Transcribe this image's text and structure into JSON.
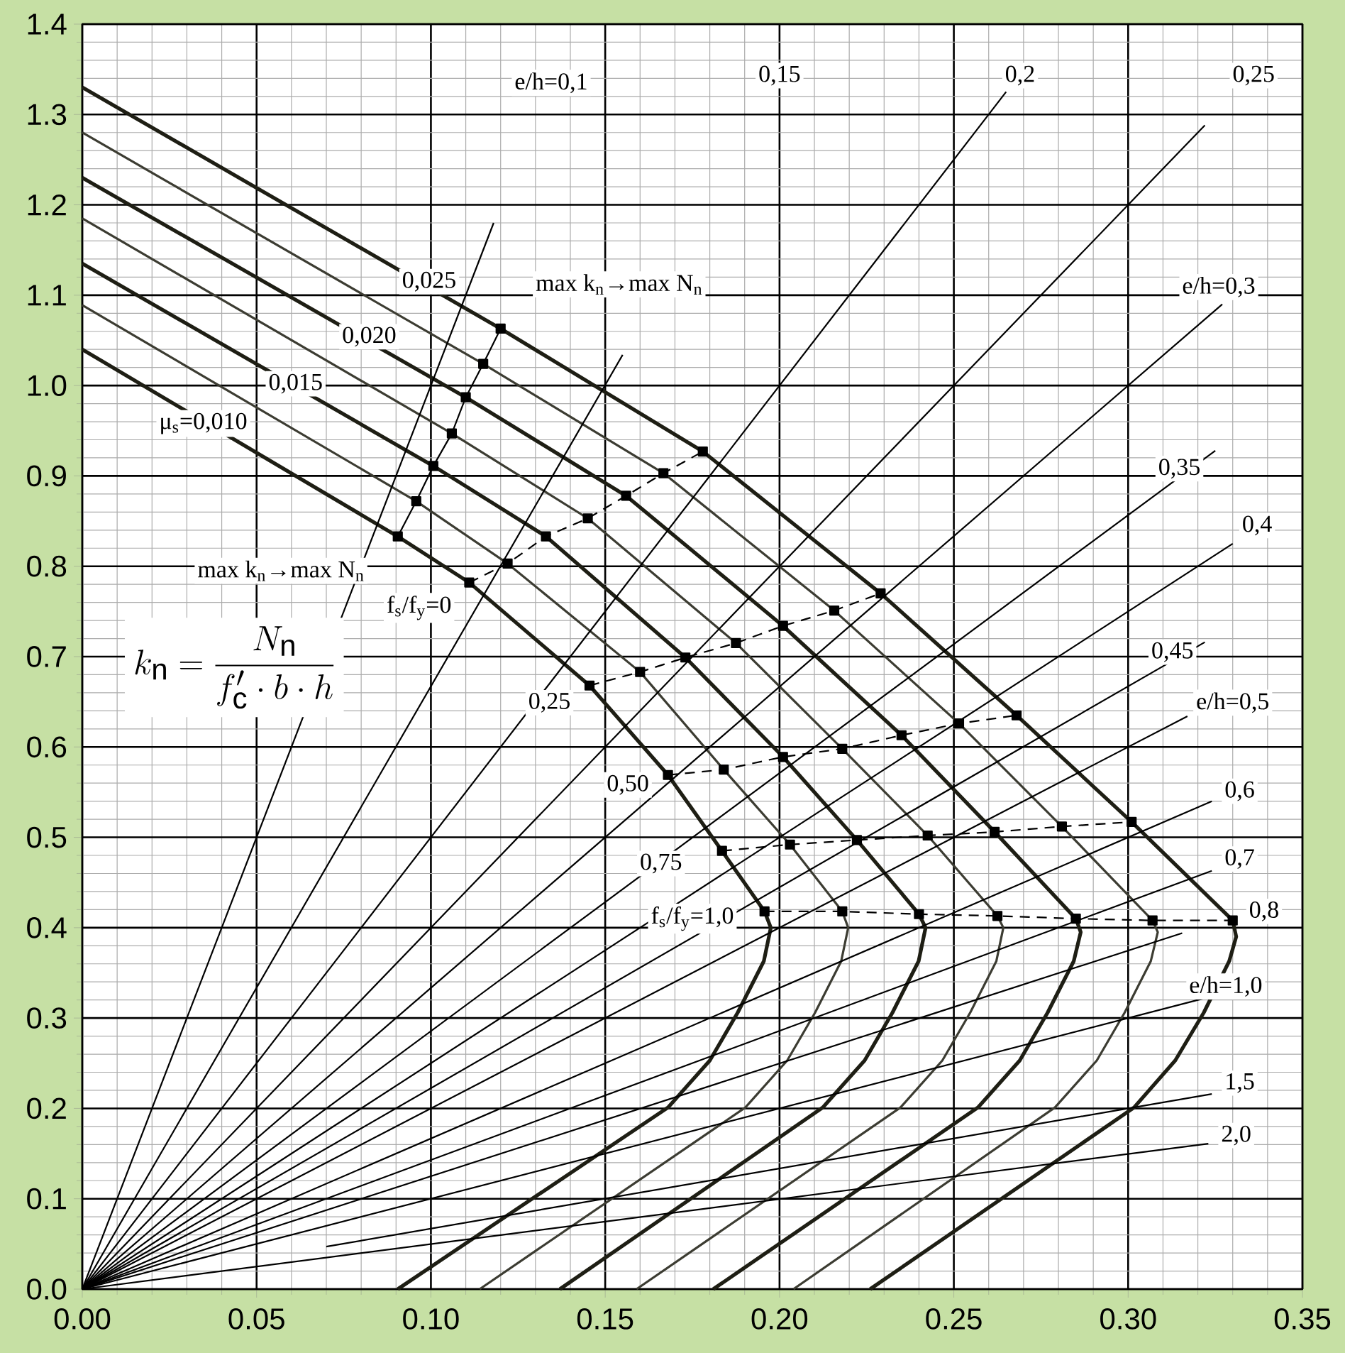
{
  "chart_data": {
    "type": "line",
    "xlim": [
      0,
      0.35
    ],
    "ylim": [
      0,
      1.4
    ],
    "xticks": [
      {
        "value": 0,
        "label": "0.00"
      },
      0.05,
      {
        "value": 0.1,
        "label": "0.10"
      },
      0.15,
      {
        "value": 0.2,
        "label": "0.20"
      },
      0.25,
      {
        "value": 0.3,
        "label": "0.30"
      },
      0.35
    ],
    "yticks": [
      {
        "value": 0,
        "label": "0.0"
      },
      0.1,
      0.2,
      0.3,
      0.4,
      0.5,
      0.6,
      0.7,
      0.8,
      0.9,
      {
        "value": 1,
        "label": "1.0"
      },
      1.1,
      1.2,
      1.3,
      1.4
    ],
    "grid": true,
    "series": [
      {
        "color": "#1e1e14",
        "x": [
          0,
          0.0905,
          0.111,
          0.1455,
          0.168,
          0.1835,
          0.1957,
          0.1975,
          0.1955,
          0.188,
          0.18,
          0.168,
          0.0905
        ],
        "values": [
          1.04,
          0.833,
          0.782,
          0.668,
          0.569,
          0.485,
          0.418,
          0.4,
          0.363,
          0.306,
          0.253,
          0.201,
          0
        ]
      },
      {
        "color": "#3c3c32",
        "x": [
          0,
          0.0958,
          0.122,
          0.16,
          0.184,
          0.203,
          0.218,
          0.2197,
          0.2177,
          0.2102,
          0.2022,
          0.1902,
          0.114
        ],
        "values": [
          1.089,
          0.872,
          0.803,
          0.683,
          0.575,
          0.492,
          0.418,
          0.4,
          0.363,
          0.306,
          0.253,
          0.201,
          0
        ]
      },
      {
        "color": "#1e1e14",
        "x": [
          0,
          0.1007,
          0.133,
          0.173,
          0.201,
          0.2222,
          0.24,
          0.2419,
          0.2399,
          0.2324,
          0.2244,
          0.2124,
          0.137
        ],
        "values": [
          1.135,
          0.911,
          0.833,
          0.699,
          0.589,
          0.497,
          0.415,
          0.4,
          0.363,
          0.306,
          0.253,
          0.201,
          0
        ]
      },
      {
        "color": "#3c3c32",
        "x": [
          0,
          0.106,
          0.145,
          0.1875,
          0.218,
          0.2425,
          0.2625,
          0.2642,
          0.2622,
          0.2547,
          0.2467,
          0.2347,
          0.159
        ],
        "values": [
          1.185,
          0.947,
          0.853,
          0.715,
          0.598,
          0.502,
          0.413,
          0.4,
          0.363,
          0.306,
          0.253,
          0.201,
          0
        ]
      },
      {
        "color": "#1e1e14",
        "x": [
          0,
          0.11,
          0.156,
          0.201,
          0.235,
          0.2617,
          0.285,
          0.2864,
          0.2844,
          0.2769,
          0.2689,
          0.2569,
          0.181
        ],
        "values": [
          1.23,
          0.987,
          0.878,
          0.734,
          0.613,
          0.506,
          0.41,
          0.395,
          0.363,
          0.306,
          0.253,
          0.201,
          0
        ]
      },
      {
        "color": "#3c3c32",
        "x": [
          0,
          0.115,
          0.1667,
          0.2157,
          0.2515,
          0.281,
          0.307,
          0.3085,
          0.3065,
          0.299,
          0.291,
          0.279,
          0.204
        ],
        "values": [
          1.28,
          1.024,
          0.903,
          0.751,
          0.626,
          0.512,
          0.408,
          0.395,
          0.363,
          0.306,
          0.253,
          0.201,
          0
        ]
      },
      {
        "color": "#1e1e14",
        "x": [
          0,
          0.12,
          0.178,
          0.229,
          0.268,
          0.301,
          0.33,
          0.331,
          0.329,
          0.3217,
          0.3135,
          0.3017,
          0.226
        ],
        "values": [
          1.33,
          1.063,
          0.927,
          0.77,
          0.635,
          0.517,
          0.408,
          0.39,
          0.363,
          0.306,
          0.253,
          0.201,
          0
        ]
      },
      {
        "color": "#000000",
        "x": [
          0,
          0.118
        ],
        "values": [
          0,
          1.18
        ]
      },
      {
        "color": "#000000",
        "x": [
          0,
          0.155
        ],
        "values": [
          0,
          1.034
        ]
      },
      {
        "color": "#000000",
        "x": [
          0,
          0.265
        ],
        "values": [
          0,
          1.325
        ]
      },
      {
        "color": "#000000",
        "x": [
          0,
          0.322
        ],
        "values": [
          0,
          1.288
        ]
      },
      {
        "color": "#000000",
        "x": [
          0,
          0.327
        ],
        "values": [
          0,
          1.09
        ]
      },
      {
        "color": "#000000",
        "x": [
          0,
          0.325
        ],
        "values": [
          0,
          0.928
        ]
      },
      {
        "color": "#000000",
        "x": [
          0,
          0.33
        ],
        "values": [
          0,
          0.825
        ]
      },
      {
        "color": "#000000",
        "x": [
          0,
          0.322
        ],
        "values": [
          0,
          0.716
        ]
      },
      {
        "color": "#000000",
        "x": [
          0,
          0.317
        ],
        "values": [
          0,
          0.634
        ]
      },
      {
        "color": "#000000",
        "x": [
          0,
          0.324
        ],
        "values": [
          0,
          0.54
        ]
      },
      {
        "color": "#000000",
        "x": [
          0,
          0.324
        ],
        "values": [
          0,
          0.463
        ]
      },
      {
        "color": "#000000",
        "x": [
          0,
          0.3155
        ],
        "values": [
          0,
          0.394
        ]
      },
      {
        "color": "#000000",
        "x": [
          0,
          0.322
        ],
        "values": [
          0,
          0.322
        ]
      },
      {
        "color": "#000000",
        "x": [
          0.07,
          0.324
        ],
        "values": [
          0.047,
          0.216
        ]
      },
      {
        "color": "#000000",
        "x": [
          0,
          0.323
        ],
        "values": [
          0,
          0.161
        ]
      },
      {
        "color": "#000000",
        "marker": "square",
        "x": [
          0.0905,
          0.0958,
          0.1007,
          0.106,
          0.11,
          0.115,
          0.12
        ],
        "values": [
          0.833,
          0.872,
          0.911,
          0.947,
          0.987,
          1.024,
          1.063
        ]
      },
      {
        "color": "#000000",
        "marker": "square",
        "line_style": "dashed",
        "x": [
          0.111,
          0.122,
          0.133,
          0.145,
          0.156,
          0.1667,
          0.178
        ],
        "values": [
          0.782,
          0.803,
          0.833,
          0.853,
          0.878,
          0.903,
          0.927
        ]
      },
      {
        "color": "#000000",
        "marker": "square",
        "line_style": "dashed",
        "x": [
          0.1455,
          0.16,
          0.173,
          0.1875,
          0.201,
          0.2157,
          0.229
        ],
        "values": [
          0.668,
          0.683,
          0.699,
          0.715,
          0.734,
          0.751,
          0.77
        ]
      },
      {
        "color": "#000000",
        "marker": "square",
        "line_style": "dashed",
        "x": [
          0.168,
          0.184,
          0.201,
          0.218,
          0.235,
          0.2515,
          0.268
        ],
        "values": [
          0.569,
          0.575,
          0.589,
          0.598,
          0.613,
          0.626,
          0.635
        ]
      },
      {
        "color": "#000000",
        "marker": "square",
        "line_style": "dashed",
        "x": [
          0.1835,
          0.203,
          0.2222,
          0.2425,
          0.2617,
          0.281,
          0.301
        ],
        "values": [
          0.485,
          0.492,
          0.497,
          0.502,
          0.506,
          0.512,
          0.517
        ]
      },
      {
        "color": "#000000",
        "marker": "square",
        "line_style": "dashed",
        "x": [
          0.1957,
          0.218,
          0.24,
          0.2625,
          0.285,
          0.307,
          0.33
        ],
        "values": [
          0.418,
          0.418,
          0.415,
          0.413,
          0.41,
          0.408,
          0.408
        ]
      }
    ],
    "annotations": [
      "k_{\\mathrm{n}} = \\dfrac{N_{\\mathrm{n}}}{f'_{\\mathrm{c}} \\cdot b \\cdot h}",
      "e/h=0,1",
      {
        "text": "0,15",
        "x": 0.2,
        "y": 1.343
      },
      {
        "text": "0,2",
        "x": 0.269,
        "y": 1.343
      },
      {
        "text": "0,25",
        "x": 0.336,
        "y": 1.343
      },
      "e/h=0,3",
      {
        "text": "0,35",
        "x": 0.3147,
        "y": 0.908
      },
      {
        "text": "0,4",
        "x": 0.337,
        "y": 0.845
      },
      {
        "text": "0,45",
        "x": 0.3127,
        "y": 0.705
      },
      "e/h=0,5",
      {
        "text": "0,6",
        "x": 0.332,
        "y": 0.551
      },
      {
        "text": "0,7",
        "x": 0.332,
        "y": 0.476
      },
      {
        "text": "0,8",
        "x": 0.339,
        "y": 0.418
      },
      {
        "text": "e/h=1,0",
        "x": 0.328,
        "y": 0.335
      },
      {
        "text": "1,5",
        "x": 0.332,
        "y": 0.228
      },
      {
        "text": "2,0",
        "x": 0.331,
        "y": 0.17
      },
      {
        "text": "0,025",
        "x": 0.0995,
        "y": 1.115
      },
      {
        "text": "0,020",
        "x": 0.0823,
        "y": 1.054
      },
      {
        "text": "0,015",
        "x": 0.0612,
        "y": 1.002
      },
      {
        "text": "μ$_{s}$=0,010",
        "x": 0.0347,
        "y": 0.958
      },
      "max k$_{n}$→max N$_{n}$",
      "max k$_{n}$→max N$_{n}$",
      "f$_{s}$/f$_{y}$=0",
      {
        "text": "0,25",
        "x": 0.134,
        "y": 0.649
      },
      {
        "text": "0,50",
        "x": 0.1565,
        "y": 0.558
      },
      {
        "text": "0,75",
        "x": 0.166,
        "y": 0.471
      },
      "f$_{s}$/f$_{y}$=1,0"
    ]
  }
}
